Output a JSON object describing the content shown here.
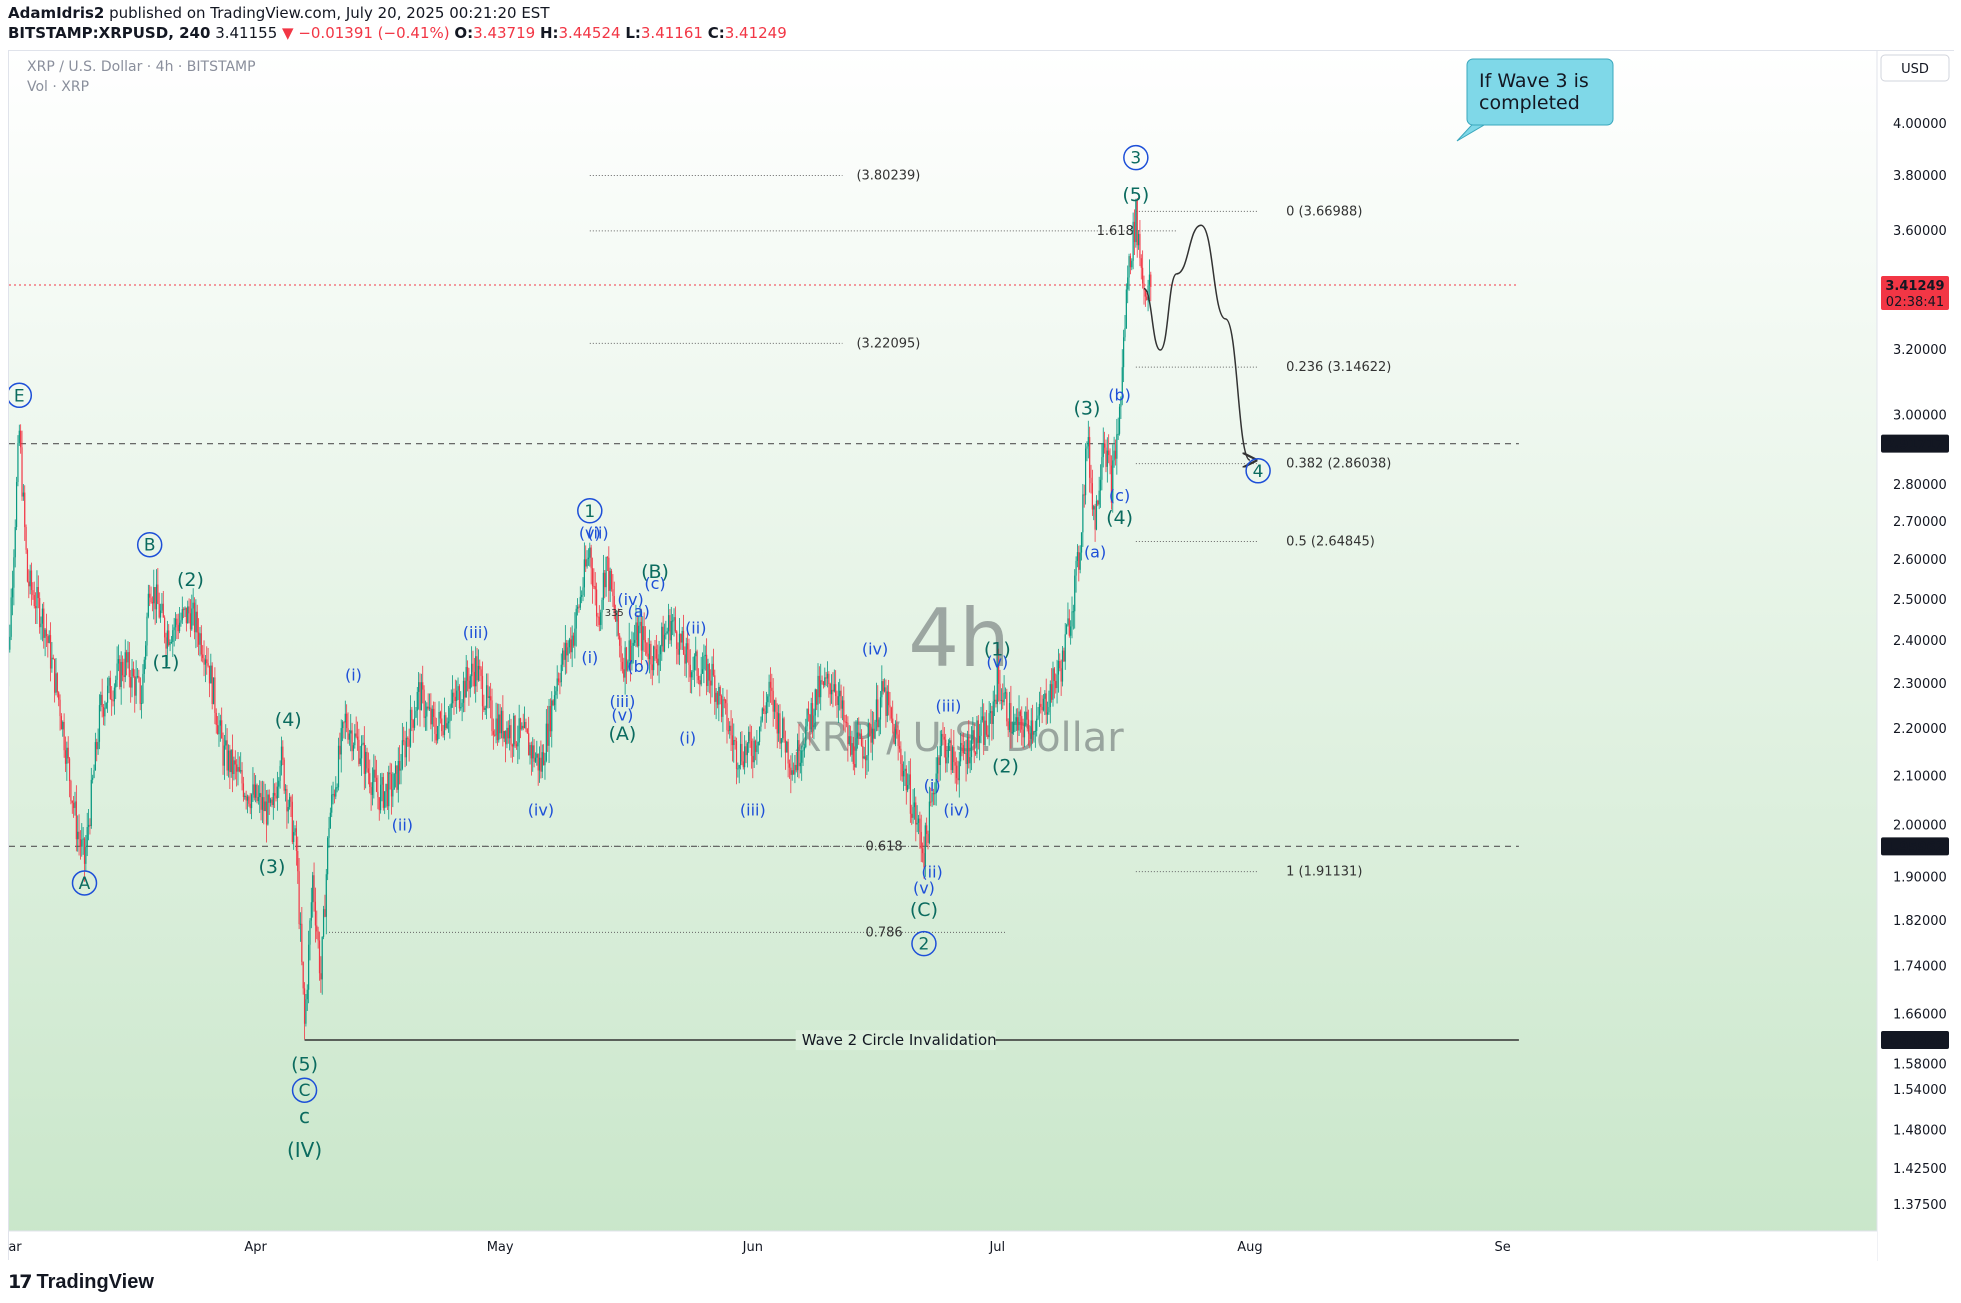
{
  "header": {
    "publisher": "AdamIdris2",
    "published_on": "published on TradingView.com, July 20, 2025 00:21:20 EST",
    "symbol": "BITSTAMP:XRPUSD, 240",
    "last": "3.41155",
    "change": "▼ −0.01391 (−0.41%)",
    "o_label": "O:",
    "o": "3.43719",
    "h_label": "H:",
    "h": "3.44524",
    "l_label": "L:",
    "l": "3.41161",
    "c_label": "C:",
    "c": "3.41249"
  },
  "legend": {
    "title": "XRP / U.S. Dollar · 4h · BITSTAMP",
    "vol": "Vol · XRP"
  },
  "watermark": {
    "interval": "4h",
    "name": "XRP / U.S. Dollar"
  },
  "currency": "USD",
  "footer": {
    "brand": "TradingView",
    "logo_glyph": "17"
  },
  "colors": {
    "up": "#089981",
    "down": "#f23645",
    "bg_top": "#ffffff",
    "bg_bottom": "#c8e6c9",
    "wave_blue": "#1d4fd8",
    "wave_green": "#0b6b5f",
    "wave_purple": "#7b1fa2",
    "callout_bg": "#7fd8e8"
  },
  "chart_data": {
    "type": "candlestick",
    "symbol": "XRPUSD",
    "exchange": "BITSTAMP",
    "interval": "4h",
    "log_scale": true,
    "ylim": [
      1.34,
      4.3
    ],
    "x_tick_labels": [
      "ar",
      "Apr",
      "May",
      "Jun",
      "Jul",
      "Aug",
      "Se"
    ],
    "y_tick_labels": [
      "4.00000",
      "3.80000",
      "3.60000",
      "3.20000",
      "3.00000",
      "2.80000",
      "2.70000",
      "2.60000",
      "2.50000",
      "2.40000",
      "2.30000",
      "2.20000",
      "2.10000",
      "2.00000",
      "1.90000",
      "1.82000",
      "1.74000",
      "1.66000",
      "1.58000",
      "1.54000",
      "1.48000",
      "1.42500",
      "1.37500"
    ],
    "price_badges": [
      {
        "value": "3.41249",
        "sub": "02:38:41",
        "color": "#f23645"
      },
      {
        "value": "2.91717",
        "color": "#131722"
      },
      {
        "value": "1.95962",
        "color": "#131722"
      },
      {
        "value": "1.61824",
        "color": "#131722"
      }
    ],
    "price_path": [
      {
        "date": "2025-03-01",
        "close": 2.12
      },
      {
        "date": "2025-03-03",
        "close": 2.95
      },
      {
        "date": "2025-03-04",
        "close": 2.55
      },
      {
        "date": "2025-03-06",
        "close": 2.45
      },
      {
        "date": "2025-03-08",
        "close": 2.25
      },
      {
        "date": "2025-03-10",
        "close": 2.0
      },
      {
        "date": "2025-03-11",
        "close": 1.93
      },
      {
        "date": "2025-03-13",
        "close": 2.25
      },
      {
        "date": "2025-03-16",
        "close": 2.35
      },
      {
        "date": "2025-03-18",
        "close": 2.27
      },
      {
        "date": "2025-03-19",
        "close": 2.55
      },
      {
        "date": "2025-03-21",
        "close": 2.42
      },
      {
        "date": "2025-03-24",
        "close": 2.47
      },
      {
        "date": "2025-03-26",
        "close": 2.37
      },
      {
        "date": "2025-03-28",
        "close": 2.15
      },
      {
        "date": "2025-03-31",
        "close": 2.07
      },
      {
        "date": "2025-04-03",
        "close": 2.02
      },
      {
        "date": "2025-04-04",
        "close": 2.15
      },
      {
        "date": "2025-04-06",
        "close": 1.95
      },
      {
        "date": "2025-04-07",
        "close": 1.64
      },
      {
        "date": "2025-04-08",
        "close": 1.9
      },
      {
        "date": "2025-04-09",
        "close": 1.72
      },
      {
        "date": "2025-04-10",
        "close": 2.01
      },
      {
        "date": "2025-04-12",
        "close": 2.22
      },
      {
        "date": "2025-04-14",
        "close": 2.15
      },
      {
        "date": "2025-04-16",
        "close": 2.06
      },
      {
        "date": "2025-04-18",
        "close": 2.08
      },
      {
        "date": "2025-04-21",
        "close": 2.28
      },
      {
        "date": "2025-04-23",
        "close": 2.2
      },
      {
        "date": "2025-04-25",
        "close": 2.25
      },
      {
        "date": "2025-04-28",
        "close": 2.34
      },
      {
        "date": "2025-04-30",
        "close": 2.22
      },
      {
        "date": "2025-05-04",
        "close": 2.18
      },
      {
        "date": "2025-05-06",
        "close": 2.12
      },
      {
        "date": "2025-05-08",
        "close": 2.32
      },
      {
        "date": "2025-05-10",
        "close": 2.42
      },
      {
        "date": "2025-05-12",
        "close": 2.63
      },
      {
        "date": "2025-05-13",
        "close": 2.45
      },
      {
        "date": "2025-05-14",
        "close": 2.6
      },
      {
        "date": "2025-05-16",
        "close": 2.35
      },
      {
        "date": "2025-05-18",
        "close": 2.42
      },
      {
        "date": "2025-05-20",
        "close": 2.36
      },
      {
        "date": "2025-05-22",
        "close": 2.45
      },
      {
        "date": "2025-05-24",
        "close": 2.35
      },
      {
        "date": "2025-05-27",
        "close": 2.32
      },
      {
        "date": "2025-05-30",
        "close": 2.15
      },
      {
        "date": "2025-06-01",
        "close": 2.16
      },
      {
        "date": "2025-06-03",
        "close": 2.28
      },
      {
        "date": "2025-06-06",
        "close": 2.12
      },
      {
        "date": "2025-06-09",
        "close": 2.28
      },
      {
        "date": "2025-06-11",
        "close": 2.31
      },
      {
        "date": "2025-06-13",
        "close": 2.15
      },
      {
        "date": "2025-06-15",
        "close": 2.17
      },
      {
        "date": "2025-06-17",
        "close": 2.28
      },
      {
        "date": "2025-06-19",
        "close": 2.15
      },
      {
        "date": "2025-06-22",
        "close": 1.95
      },
      {
        "date": "2025-06-23",
        "close": 2.05
      },
      {
        "date": "2025-06-24",
        "close": 2.18
      },
      {
        "date": "2025-06-26",
        "close": 2.12
      },
      {
        "date": "2025-06-28",
        "close": 2.18
      },
      {
        "date": "2025-06-30",
        "close": 2.2
      },
      {
        "date": "2025-07-01",
        "close": 2.31
      },
      {
        "date": "2025-07-03",
        "close": 2.2
      },
      {
        "date": "2025-07-06",
        "close": 2.22
      },
      {
        "date": "2025-07-09",
        "close": 2.35
      },
      {
        "date": "2025-07-11",
        "close": 2.6
      },
      {
        "date": "2025-07-12",
        "close": 2.93
      },
      {
        "date": "2025-07-13",
        "close": 2.7
      },
      {
        "date": "2025-07-14",
        "close": 2.95
      },
      {
        "date": "2025-07-15",
        "close": 2.8
      },
      {
        "date": "2025-07-16",
        "close": 3.0
      },
      {
        "date": "2025-07-17",
        "close": 3.45
      },
      {
        "date": "2025-07-18",
        "close": 3.65
      },
      {
        "date": "2025-07-19",
        "close": 3.4
      },
      {
        "date": "2025-07-20",
        "close": 3.41
      }
    ],
    "projection": [
      {
        "date": "2025-07-19",
        "price": 3.4
      },
      {
        "date": "2025-07-21",
        "price": 3.2
      },
      {
        "date": "2025-07-23",
        "price": 3.45
      },
      {
        "date": "2025-07-26",
        "price": 3.62
      },
      {
        "date": "2025-07-29",
        "price": 3.3
      },
      {
        "date": "2025-08-01",
        "price": 2.87
      }
    ],
    "horizontal_lines": [
      {
        "label": "",
        "price": 2.91717,
        "style": "dashed",
        "from": "2025-03-01",
        "to": "2025-09-03"
      },
      {
        "label": "",
        "price": 1.95962,
        "style": "dashed",
        "from": "2025-03-01",
        "to": "2025-09-03"
      },
      {
        "label": "",
        "price": 3.41249,
        "style": "dotted-red",
        "from": "2025-03-01",
        "to": "2025-09-03"
      },
      {
        "label": "Wave 2 Circle Invalidation",
        "price": 1.61824,
        "style": "solid",
        "from": "2025-04-07",
        "to": "2025-09-03"
      }
    ],
    "fib_levels": [
      {
        "label": "0 (3.66988)",
        "price": 3.66988,
        "from": "2025-07-18",
        "to": "2025-08-02"
      },
      {
        "label": "0.236 (3.14622)",
        "price": 3.14622,
        "from": "2025-07-18",
        "to": "2025-08-02"
      },
      {
        "label": "0.382 (2.86038)",
        "price": 2.86038,
        "from": "2025-07-18",
        "to": "2025-08-02"
      },
      {
        "label": "0.5 (2.64845)",
        "price": 2.64845,
        "from": "2025-07-18",
        "to": "2025-08-02"
      },
      {
        "label": "1 (1.91131)",
        "price": 1.91131,
        "from": "2025-07-18",
        "to": "2025-08-02"
      },
      {
        "label": "(3.80239)",
        "price": 3.80239,
        "from": "2025-05-12",
        "to": "2025-06-12"
      },
      {
        "label": "(3.22095)",
        "price": 3.22095,
        "from": "2025-05-12",
        "to": "2025-06-12"
      },
      {
        "label": "1.618",
        "price": 3.6,
        "from": "2025-05-12",
        "to": "2025-07-23"
      },
      {
        "label": "0.618",
        "price": 1.95962,
        "from": "2025-04-10",
        "to": "2025-07-02"
      },
      {
        "label": "0.786",
        "price": 1.8,
        "from": "2025-04-10",
        "to": "2025-07-02"
      }
    ],
    "wave_labels": [
      {
        "text": "b",
        "date": "2025-03-01",
        "price": 3.18,
        "style": "purple"
      },
      {
        "text": "E",
        "date": "2025-03-03",
        "price": 3.06,
        "style": "blue-circle"
      },
      {
        "text": "A",
        "date": "2025-03-11",
        "price": 1.89,
        "style": "blue-circle"
      },
      {
        "text": "B",
        "date": "2025-03-19",
        "price": 2.64,
        "style": "blue-circle"
      },
      {
        "text": "(2)",
        "date": "2025-03-24",
        "price": 2.55,
        "style": "green"
      },
      {
        "text": "(1)",
        "date": "2025-03-21",
        "price": 2.35,
        "style": "green"
      },
      {
        "text": "(4)",
        "date": "2025-04-05",
        "price": 2.22,
        "style": "green"
      },
      {
        "text": "(3)",
        "date": "2025-04-03",
        "price": 1.92,
        "style": "green"
      },
      {
        "text": "(5)",
        "date": "2025-04-07",
        "price": 1.58,
        "style": "green"
      },
      {
        "text": "C",
        "date": "2025-04-07",
        "price": 1.54,
        "style": "blue-circle"
      },
      {
        "text": "c",
        "date": "2025-04-07",
        "price": 1.5,
        "style": "purple"
      },
      {
        "text": "(IV)",
        "date": "2025-04-07",
        "price": 1.45,
        "style": "purple"
      },
      {
        "text": "(i)",
        "date": "2025-04-13",
        "price": 2.32,
        "style": "blue"
      },
      {
        "text": "(ii)",
        "date": "2025-04-19",
        "price": 2.0,
        "style": "blue"
      },
      {
        "text": "(iii)",
        "date": "2025-04-28",
        "price": 2.42,
        "style": "blue"
      },
      {
        "text": "(iv)",
        "date": "2025-05-06",
        "price": 2.03,
        "style": "blue"
      },
      {
        "text": "1",
        "date": "2025-05-12",
        "price": 2.73,
        "style": "blue-circle"
      },
      {
        "text": "(v)",
        "date": "2025-05-12",
        "price": 2.67,
        "style": "blue"
      },
      {
        "text": "(ii)",
        "date": "2025-05-13",
        "price": 2.67,
        "style": "blue"
      },
      {
        "text": "(iv)",
        "date": "2025-05-17",
        "price": 2.5,
        "style": "blue"
      },
      {
        "text": "(a)",
        "date": "2025-05-18",
        "price": 2.47,
        "style": "blue"
      },
      {
        "text": "(B)",
        "date": "2025-05-20",
        "price": 2.57,
        "style": "green"
      },
      {
        "text": "(c)",
        "date": "2025-05-20",
        "price": 2.54,
        "style": "blue"
      },
      {
        "text": "(i)",
        "date": "2025-05-12",
        "price": 2.36,
        "style": "blue"
      },
      {
        "text": "(iii)",
        "date": "2025-05-16",
        "price": 2.26,
        "style": "blue"
      },
      {
        "text": "(b)",
        "date": "2025-05-18",
        "price": 2.34,
        "style": "blue"
      },
      {
        "text": "(v)",
        "date": "2025-05-16",
        "price": 2.23,
        "style": "blue"
      },
      {
        "text": "(A)",
        "date": "2025-05-16",
        "price": 2.19,
        "style": "green"
      },
      {
        "text": "(ii)",
        "date": "2025-05-25",
        "price": 2.43,
        "style": "blue"
      },
      {
        "text": "(i)",
        "date": "2025-05-24",
        "price": 2.18,
        "style": "blue"
      },
      {
        "text": "(iii)",
        "date": "2025-06-01",
        "price": 2.03,
        "style": "blue"
      },
      {
        "text": "(iv)",
        "date": "2025-06-16",
        "price": 2.38,
        "style": "blue"
      },
      {
        "text": "(iii)",
        "date": "2025-06-25",
        "price": 2.25,
        "style": "blue"
      },
      {
        "text": "(i)",
        "date": "2025-06-23",
        "price": 2.08,
        "style": "blue"
      },
      {
        "text": "(iv)",
        "date": "2025-06-26",
        "price": 2.03,
        "style": "blue"
      },
      {
        "text": "(ii)",
        "date": "2025-06-23",
        "price": 1.91,
        "style": "blue"
      },
      {
        "text": "(v)",
        "date": "2025-06-22",
        "price": 1.88,
        "style": "blue"
      },
      {
        "text": "(C)",
        "date": "2025-06-22",
        "price": 1.84,
        "style": "green"
      },
      {
        "text": "2",
        "date": "2025-06-22",
        "price": 1.78,
        "style": "blue-circle"
      },
      {
        "text": "(1)",
        "date": "2025-07-01",
        "price": 2.38,
        "style": "green"
      },
      {
        "text": "(v)",
        "date": "2025-07-01",
        "price": 2.35,
        "style": "blue"
      },
      {
        "text": "(2)",
        "date": "2025-07-02",
        "price": 2.12,
        "style": "green"
      },
      {
        "text": "(3)",
        "date": "2025-07-12",
        "price": 3.02,
        "style": "green"
      },
      {
        "text": "(b)",
        "date": "2025-07-16",
        "price": 3.06,
        "style": "blue"
      },
      {
        "text": "(c)",
        "date": "2025-07-16",
        "price": 2.77,
        "style": "blue"
      },
      {
        "text": "(4)",
        "date": "2025-07-16",
        "price": 2.71,
        "style": "green"
      },
      {
        "text": "(a)",
        "date": "2025-07-13",
        "price": 2.62,
        "style": "blue"
      },
      {
        "text": "(5)",
        "date": "2025-07-18",
        "price": 3.73,
        "style": "green"
      },
      {
        "text": "3",
        "date": "2025-07-18",
        "price": 3.87,
        "style": "blue-circle"
      },
      {
        "text": "4",
        "date": "2025-08-02",
        "price": 2.84,
        "style": "blue-circle"
      }
    ],
    "callout": {
      "text_line1": "If Wave 3 is",
      "text_line2": "completed"
    },
    "small_text": "335"
  }
}
